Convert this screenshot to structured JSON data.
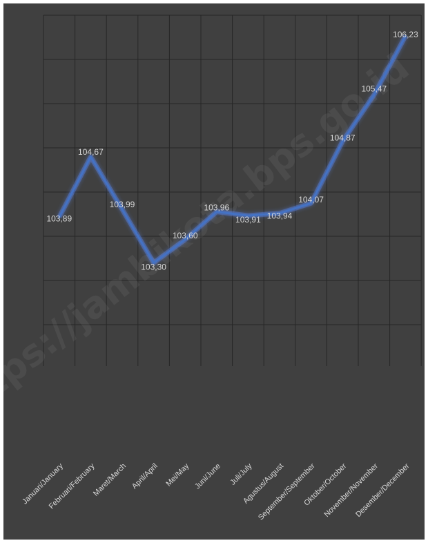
{
  "watermark": "https://jambikota.bps.go.id",
  "chart_data": {
    "type": "line",
    "title": "",
    "xlabel": "",
    "ylabel": "",
    "grid": true,
    "ylim": [
      102.5,
      106.5
    ],
    "categories": [
      "Januari/January",
      "Februari/February",
      "Maret/March",
      "April/April",
      "Mei/May",
      "Juni/June",
      "Juli/July",
      "Agustus/August",
      "September/September",
      "Oktober/October",
      "November/November",
      "Desember/December"
    ],
    "series": [
      {
        "values": [
          103.89,
          104.67,
          103.99,
          103.3,
          103.6,
          103.96,
          103.91,
          103.94,
          104.07,
          104.87,
          105.47,
          106.23
        ],
        "labels": [
          "103,89",
          "104,67",
          "103,99",
          "103,30",
          "103,60",
          "103,96",
          "103,91",
          "103,94",
          "104,07",
          "104,87",
          "105,47",
          "106,23"
        ]
      }
    ],
    "colors": {
      "background": "#404040",
      "line": "#4472c4",
      "glow": "#5b8cff",
      "text": "#d9d9d9",
      "grid": "#262626"
    }
  }
}
